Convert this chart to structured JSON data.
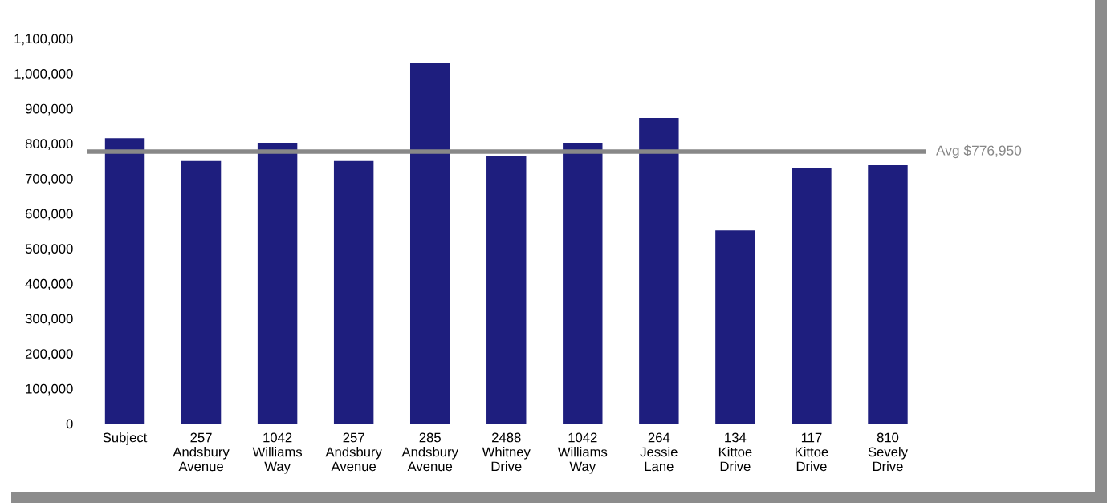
{
  "chart_data": {
    "type": "bar",
    "categories": [
      "Subject",
      "257\nAndsbury\nAvenue",
      "1042\nWilliams\nWay",
      "257\nAndsbury\nAvenue",
      "285\nAndsbury\nAvenue",
      "2488\nWhitney\nDrive",
      "1042\nWilliams\nWay",
      "264\nJessie\nLane",
      "134\nKittoe\nDrive",
      "117\nKittoe\nDrive",
      "810\nSevely\nDrive"
    ],
    "values": [
      815000,
      750000,
      802000,
      750000,
      1031000,
      763000,
      802000,
      873000,
      552000,
      729000,
      738000
    ],
    "color": "#1e1e7e",
    "ylim": [
      0,
      1100000
    ],
    "yticks": [
      {
        "value": 0,
        "label": "0"
      },
      {
        "value": 100000,
        "label": "100,000"
      },
      {
        "value": 200000,
        "label": "200,000"
      },
      {
        "value": 300000,
        "label": "300,000"
      },
      {
        "value": 400000,
        "label": "400,000"
      },
      {
        "value": 500000,
        "label": "500,000"
      },
      {
        "value": 600000,
        "label": "600,000"
      },
      {
        "value": 700000,
        "label": "700,000"
      },
      {
        "value": 800000,
        "label": "800,000"
      },
      {
        "value": 900000,
        "label": "900,000"
      },
      {
        "value": 1000000,
        "label": "1,000,000"
      },
      {
        "value": 1100000,
        "label": "1,100,000"
      }
    ],
    "ref_lines": [
      {
        "axis": "y",
        "value": 776950,
        "label": "Avg $776,950",
        "color": "#888888"
      }
    ],
    "grid": false,
    "legend": false
  }
}
